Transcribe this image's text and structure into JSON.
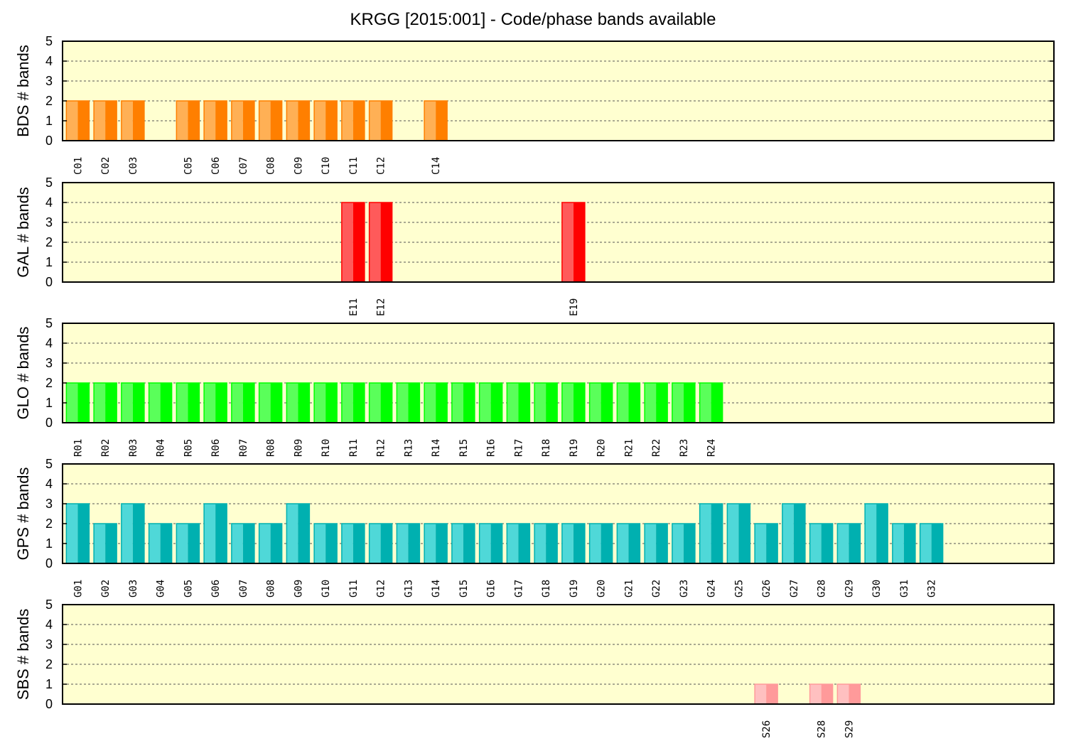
{
  "title": "KRGG [2015:001] - Code/phase bands available",
  "chart_data": [
    {
      "type": "bar",
      "ylabel": "BDS # bands",
      "ylim": [
        0,
        5
      ],
      "yticks": [
        0,
        1,
        2,
        3,
        4,
        5
      ],
      "grid": "dashed horizontal",
      "colors": {
        "light": "#ffb055",
        "dark": "#ff7f00"
      },
      "categories": [
        "C01",
        "C02",
        "C03",
        "C05",
        "C06",
        "C07",
        "C08",
        "C09",
        "C10",
        "C11",
        "C12",
        "C14"
      ],
      "values": [
        2,
        2,
        2,
        2,
        2,
        2,
        2,
        2,
        2,
        2,
        2,
        2
      ]
    },
    {
      "type": "bar",
      "ylabel": "GAL # bands",
      "ylim": [
        0,
        5
      ],
      "yticks": [
        0,
        1,
        2,
        3,
        4,
        5
      ],
      "grid": "dashed horizontal",
      "colors": {
        "light": "#ff5a5a",
        "dark": "#ff0000"
      },
      "categories": [
        "E11",
        "E12",
        "E19"
      ],
      "values": [
        4,
        4,
        4
      ]
    },
    {
      "type": "bar",
      "ylabel": "GLO # bands",
      "ylim": [
        0,
        5
      ],
      "yticks": [
        0,
        1,
        2,
        3,
        4,
        5
      ],
      "grid": "dashed horizontal",
      "colors": {
        "light": "#5aff5a",
        "dark": "#00ff00"
      },
      "categories": [
        "R01",
        "R02",
        "R03",
        "R04",
        "R05",
        "R06",
        "R07",
        "R08",
        "R09",
        "R10",
        "R11",
        "R12",
        "R13",
        "R14",
        "R15",
        "R16",
        "R17",
        "R18",
        "R19",
        "R20",
        "R21",
        "R22",
        "R23",
        "R24"
      ],
      "values": [
        2,
        2,
        2,
        2,
        2,
        2,
        2,
        2,
        2,
        2,
        2,
        2,
        2,
        2,
        2,
        2,
        2,
        2,
        2,
        2,
        2,
        2,
        2,
        2
      ]
    },
    {
      "type": "bar",
      "ylabel": "GPS # bands",
      "ylim": [
        0,
        5
      ],
      "yticks": [
        0,
        1,
        2,
        3,
        4,
        5
      ],
      "grid": "dashed horizontal",
      "colors": {
        "light": "#4fd8d8",
        "dark": "#00b0b0"
      },
      "categories": [
        "G01",
        "G02",
        "G03",
        "G04",
        "G05",
        "G06",
        "G07",
        "G08",
        "G09",
        "G10",
        "G11",
        "G12",
        "G13",
        "G14",
        "G15",
        "G16",
        "G17",
        "G18",
        "G19",
        "G20",
        "G21",
        "G22",
        "G23",
        "G24",
        "G25",
        "G26",
        "G27",
        "G28",
        "G29",
        "G30",
        "G31",
        "G32"
      ],
      "values": [
        3,
        2,
        3,
        2,
        2,
        3,
        2,
        2,
        3,
        2,
        2,
        2,
        2,
        2,
        2,
        2,
        2,
        2,
        2,
        2,
        2,
        2,
        2,
        3,
        3,
        2,
        3,
        2,
        2,
        3,
        2,
        2
      ]
    },
    {
      "type": "bar",
      "ylabel": "SBS # bands",
      "ylim": [
        0,
        5
      ],
      "yticks": [
        0,
        1,
        2,
        3,
        4,
        5
      ],
      "grid": "dashed horizontal",
      "colors": {
        "light": "#ffc0c0",
        "dark": "#ff9a9a"
      },
      "categories": [
        "S26",
        "S28",
        "S29"
      ],
      "values": [
        1,
        1,
        1
      ]
    }
  ]
}
